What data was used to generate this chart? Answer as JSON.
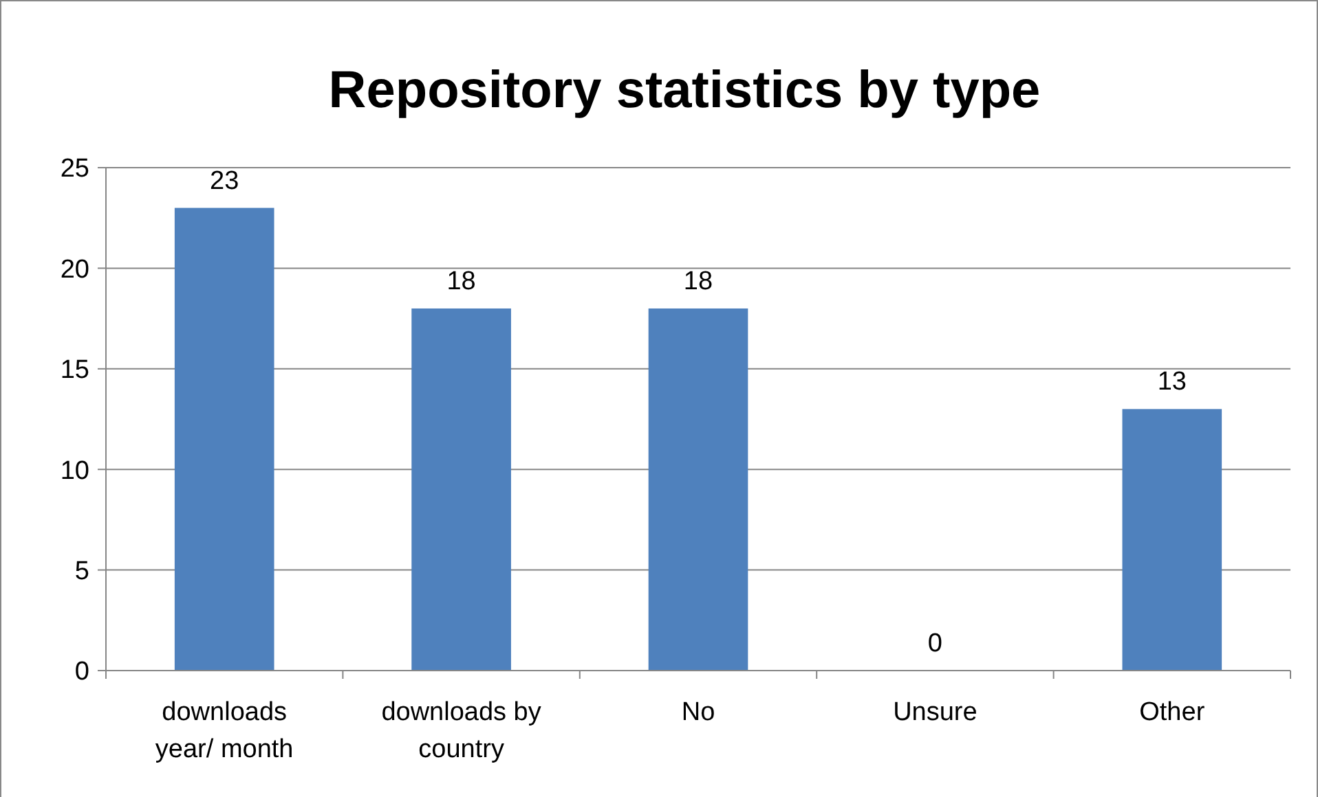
{
  "chart_data": {
    "type": "bar",
    "title": "Repository statistics by type",
    "categories": [
      "downloads year/ month",
      "downloads by country",
      "No",
      "Unsure",
      "Other"
    ],
    "values": [
      23,
      18,
      18,
      0,
      13
    ],
    "color": "#4f81bd",
    "ylim": [
      0,
      25
    ],
    "yticks": [
      0,
      5,
      10,
      15,
      20,
      25
    ],
    "grid": "y",
    "data_labels": true
  }
}
